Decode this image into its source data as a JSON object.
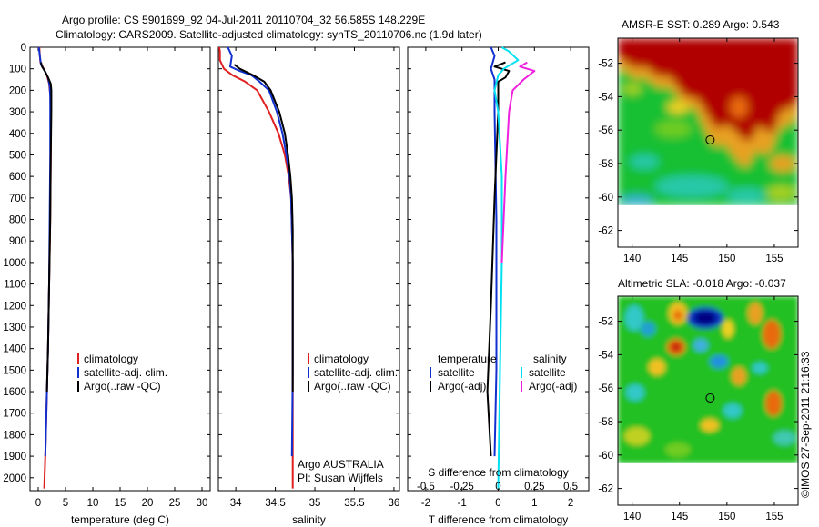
{
  "header": {
    "title_line1": "Argo profile: CS 5901699_92 04-Jul-2011 20110704_32 56.585S 148.229E",
    "title_line2": "Climatology: CARS2009. Satellite-adjusted climatology: synTS_20110706.nc (1.9d later)"
  },
  "credit": "©IMOS 27-Sep-2011 21:16:33",
  "colors": {
    "climatology": "#e02020",
    "satellite": "#1030d0",
    "argo": "#000000",
    "sal_satellite": "#00e0f0",
    "sal_argo": "#f020e0"
  },
  "chart_data": [
    {
      "id": "temperature",
      "type": "line",
      "xlabel": "temperature (deg C)",
      "ylabel": "",
      "xlim": [
        -1.5,
        31.5
      ],
      "ylim": [
        2060,
        0
      ],
      "xticks": [
        0,
        5,
        10,
        15,
        20,
        25,
        30
      ],
      "yticks": [
        0,
        100,
        200,
        300,
        400,
        500,
        600,
        700,
        800,
        900,
        1000,
        1100,
        1200,
        1300,
        1400,
        1500,
        1600,
        1700,
        1800,
        1900,
        2000
      ],
      "legend": [
        "climatology",
        "satellite-adj. clim.",
        "Argo(..raw -QC)"
      ],
      "legend_position": "lower-center",
      "series": [
        {
          "name": "climatology",
          "color": "#e02020",
          "points": [
            [
              0.2,
              0
            ],
            [
              0.3,
              40
            ],
            [
              0.4,
              70
            ],
            [
              1.0,
              100
            ],
            [
              1.6,
              130
            ],
            [
              2.0,
              170
            ],
            [
              2.2,
              220
            ],
            [
              2.3,
              300
            ],
            [
              2.3,
              500
            ],
            [
              2.2,
              800
            ],
            [
              2.0,
              1100
            ],
            [
              1.8,
              1400
            ],
            [
              1.5,
              1700
            ],
            [
              1.3,
              1900
            ],
            [
              1.1,
              2050
            ]
          ]
        },
        {
          "name": "satellite-adj. clim.",
          "color": "#1030d0",
          "points": [
            [
              0.1,
              0
            ],
            [
              0.3,
              40
            ],
            [
              0.5,
              80
            ],
            [
              1.2,
              110
            ],
            [
              1.8,
              140
            ],
            [
              2.1,
              180
            ],
            [
              2.2,
              230
            ],
            [
              2.2,
              300
            ],
            [
              2.2,
              500
            ],
            [
              2.1,
              800
            ],
            [
              2.0,
              1100
            ],
            [
              1.8,
              1400
            ],
            [
              1.5,
              1700
            ],
            [
              1.3,
              1900
            ]
          ]
        },
        {
          "name": "Argo(..raw -QC)",
          "color": "#000000",
          "points": [
            [
              0.5,
              70
            ],
            [
              0.7,
              90
            ],
            [
              1.2,
              110
            ],
            [
              1.8,
              140
            ],
            [
              2.3,
              170
            ],
            [
              2.4,
              200
            ],
            [
              2.4,
              300
            ],
            [
              2.3,
              500
            ],
            [
              2.2,
              800
            ],
            [
              2.0,
              1100
            ],
            [
              1.8,
              1400
            ],
            [
              1.6,
              1600
            ]
          ]
        }
      ]
    },
    {
      "id": "salinity",
      "type": "line",
      "xlabel": "salinity",
      "ylabel": "",
      "xlim": [
        33.78,
        36.07
      ],
      "ylim": [
        2060,
        0
      ],
      "xticks": [
        34,
        34.5,
        35,
        35.5,
        36
      ],
      "xticklabels": [
        "34",
        "34.5",
        "35",
        "35.5",
        "36"
      ],
      "legend": [
        "climatology",
        "satellite-adj. clim.",
        "Argo(..raw -QC)"
      ],
      "legend_position": "lower-right",
      "annotation": [
        "Argo AUSTRALIA",
        "PI: Susan Wijffels"
      ],
      "series": [
        {
          "name": "climatology",
          "color": "#e02020",
          "points": [
            [
              33.79,
              0
            ],
            [
              33.8,
              20
            ],
            [
              33.8,
              60
            ],
            [
              33.85,
              100
            ],
            [
              33.96,
              130
            ],
            [
              34.12,
              160
            ],
            [
              34.27,
              200
            ],
            [
              34.42,
              300
            ],
            [
              34.54,
              400
            ],
            [
              34.62,
              500
            ],
            [
              34.67,
              600
            ],
            [
              34.7,
              700
            ],
            [
              34.71,
              850
            ],
            [
              34.72,
              1000
            ],
            [
              34.72,
              1500
            ],
            [
              34.72,
              2050
            ]
          ]
        },
        {
          "name": "satellite-adj. clim.",
          "color": "#1030d0",
          "points": [
            [
              33.9,
              0
            ],
            [
              33.95,
              40
            ],
            [
              33.93,
              90
            ],
            [
              34.05,
              110
            ],
            [
              34.2,
              130
            ],
            [
              34.3,
              160
            ],
            [
              34.42,
              200
            ],
            [
              34.52,
              300
            ],
            [
              34.59,
              400
            ],
            [
              34.64,
              500
            ],
            [
              34.68,
              600
            ],
            [
              34.7,
              700
            ],
            [
              34.71,
              850
            ],
            [
              34.72,
              1000
            ],
            [
              34.72,
              1500
            ],
            [
              34.71,
              1900
            ]
          ]
        },
        {
          "name": "Argo(..raw -QC)",
          "color": "#000000",
          "points": [
            [
              33.98,
              80
            ],
            [
              34.05,
              100
            ],
            [
              34.22,
              130
            ],
            [
              34.36,
              160
            ],
            [
              34.44,
              200
            ],
            [
              34.55,
              300
            ],
            [
              34.62,
              400
            ],
            [
              34.66,
              500
            ],
            [
              34.69,
              600
            ],
            [
              34.71,
              700
            ],
            [
              34.72,
              850
            ],
            [
              34.72,
              1000
            ],
            [
              34.72,
              1500
            ],
            [
              34.72,
              1600
            ]
          ]
        }
      ]
    },
    {
      "id": "difference",
      "type": "line",
      "xlabel": "T difference from climatology",
      "xlabel_top": "S difference from climatology",
      "xlim": [
        -2.5,
        2.5
      ],
      "ylim": [
        2060,
        0
      ],
      "xticks": [
        -2,
        -1,
        0,
        1,
        2
      ],
      "xticks_top": [
        -0.5,
        -0.25,
        0,
        0.25,
        0.5
      ],
      "xticklabels_top": [
        "-0.5",
        "-0.25",
        "0",
        "0.25",
        "0.5"
      ],
      "legend": [
        "temperature",
        "satellite",
        "Argo(-adj)",
        "salinity",
        "satellite",
        "Argo(-adj)"
      ],
      "legend_position": "lower-center",
      "series": [
        {
          "name": "satellite",
          "group": "temperature",
          "color": "#1030d0",
          "points": [
            [
              -0.2,
              0
            ],
            [
              -0.1,
              40
            ],
            [
              -0.2,
              100
            ],
            [
              -0.1,
              150
            ],
            [
              -0.1,
              300
            ],
            [
              -0.05,
              800
            ],
            [
              -0.05,
              1500
            ],
            [
              -0.1,
              1900
            ]
          ]
        },
        {
          "name": "Argo(-adj)",
          "group": "temperature",
          "color": "#000000",
          "points": [
            [
              0.2,
              70
            ],
            [
              -0.1,
              90
            ],
            [
              0.3,
              110
            ],
            [
              0.2,
              140
            ],
            [
              0.0,
              160
            ],
            [
              0.0,
              300
            ],
            [
              -0.1,
              700
            ],
            [
              -0.2,
              1200
            ],
            [
              -0.3,
              1600
            ],
            [
              -0.2,
              1900
            ]
          ]
        },
        {
          "name": "satellite",
          "group": "salinity",
          "color": "#00e0f0",
          "points": [
            [
              0.1,
              0
            ],
            [
              0.3,
              20
            ],
            [
              0.55,
              60
            ],
            [
              0.15,
              100
            ],
            [
              0.0,
              130
            ],
            [
              -0.1,
              200
            ],
            [
              0.0,
              300
            ],
            [
              0.1,
              600
            ],
            [
              0.1,
              1000
            ],
            [
              0.05,
              1500
            ],
            [
              0.0,
              2050
            ]
          ]
        },
        {
          "name": "Argo(-adj)",
          "group": "salinity",
          "color": "#f020e0",
          "points": [
            [
              0.8,
              70
            ],
            [
              0.6,
              90
            ],
            [
              1.0,
              110
            ],
            [
              0.7,
              150
            ],
            [
              0.4,
              200
            ],
            [
              0.3,
              300
            ],
            [
              0.2,
              600
            ],
            [
              0.1,
              1000
            ]
          ]
        }
      ]
    },
    {
      "id": "sst-map",
      "type": "heatmap",
      "title": "AMSR-E SST: 0.289 Argo: 0.543",
      "xlim": [
        138.5,
        157.5
      ],
      "ylim": [
        -63,
        -50.5
      ],
      "xticks": [
        140,
        145,
        150,
        155
      ],
      "yticks": [
        -52,
        -54,
        -56,
        -58,
        -60,
        -62
      ],
      "marker": {
        "lon": 148.229,
        "lat": -56.585
      }
    },
    {
      "id": "sla-map",
      "type": "heatmap",
      "title": "Altimetric SLA: -0.018 Argo: -0.037",
      "xlim": [
        138.5,
        157.5
      ],
      "ylim": [
        -63,
        -50.5
      ],
      "xticks": [
        140,
        145,
        150,
        155
      ],
      "yticks": [
        -52,
        -54,
        -56,
        -58,
        -60,
        -62
      ],
      "marker": {
        "lon": 148.229,
        "lat": -56.585
      }
    }
  ]
}
